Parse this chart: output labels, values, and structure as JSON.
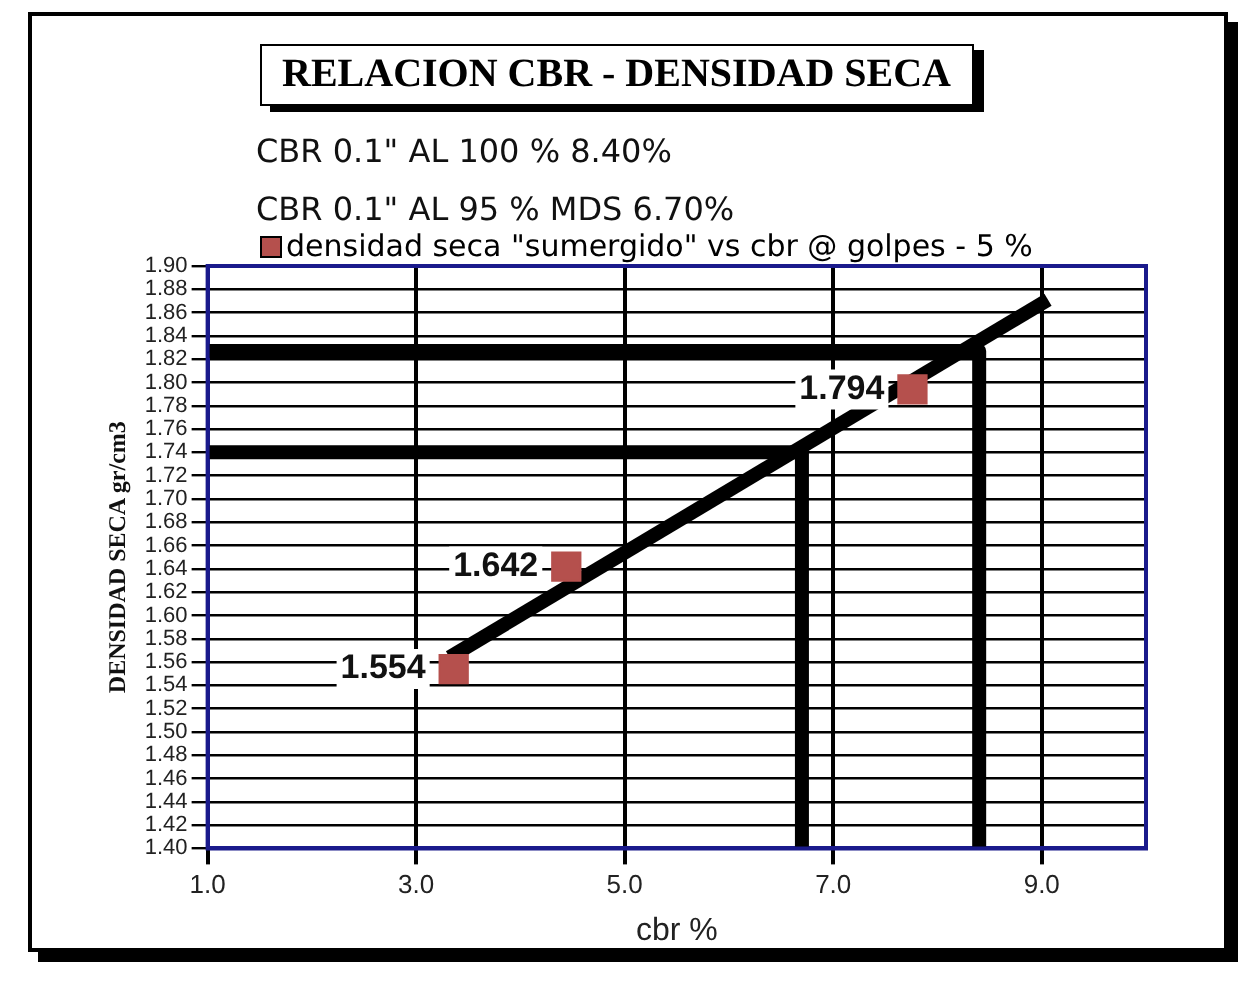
{
  "chart_data": {
    "type": "scatter",
    "title": "RELACION CBR - DENSIDAD SECA",
    "xlabel": "cbr %",
    "ylabel": "DENSIDAD SECA gr/cm3",
    "annotations": [
      "CBR  0.1\" AL 100 % 8.40%",
      "CBR  0.1\" AL 95 % MDS 6.70%"
    ],
    "xlim": [
      1,
      10
    ],
    "xticks": [
      {
        "value": 1,
        "label": "1.0"
      },
      {
        "value": 3,
        "label": "3.0"
      },
      {
        "value": 5,
        "label": "5.0"
      },
      {
        "value": 7,
        "label": "7.0"
      },
      {
        "value": 9,
        "label": "9.0"
      }
    ],
    "ylim": [
      1.4,
      1.9
    ],
    "yticks": [
      {
        "value": 1.4,
        "label": "1.40"
      },
      {
        "value": 1.42,
        "label": "1.42"
      },
      {
        "value": 1.44,
        "label": "1.44"
      },
      {
        "value": 1.46,
        "label": "1.46"
      },
      {
        "value": 1.48,
        "label": "1.48"
      },
      {
        "value": 1.5,
        "label": "1.50"
      },
      {
        "value": 1.52,
        "label": "1.52"
      },
      {
        "value": 1.54,
        "label": "1.54"
      },
      {
        "value": 1.56,
        "label": "1.56"
      },
      {
        "value": 1.58,
        "label": "1.58"
      },
      {
        "value": 1.6,
        "label": "1.60"
      },
      {
        "value": 1.62,
        "label": "1.62"
      },
      {
        "value": 1.64,
        "label": "1.64"
      },
      {
        "value": 1.66,
        "label": "1.66"
      },
      {
        "value": 1.68,
        "label": "1.68"
      },
      {
        "value": 1.7,
        "label": "1.70"
      },
      {
        "value": 1.72,
        "label": "1.72"
      },
      {
        "value": 1.74,
        "label": "1.74"
      },
      {
        "value": 1.76,
        "label": "1.76"
      },
      {
        "value": 1.78,
        "label": "1.78"
      },
      {
        "value": 1.8,
        "label": "1.80"
      },
      {
        "value": 1.82,
        "label": "1.82"
      },
      {
        "value": 1.84,
        "label": "1.84"
      },
      {
        "value": 1.86,
        "label": "1.86"
      },
      {
        "value": 1.88,
        "label": "1.88"
      },
      {
        "value": 1.9,
        "label": "1.90"
      }
    ],
    "grid": true,
    "legend": "top",
    "marker": "square",
    "series": [
      {
        "name": "densidad seca \"sumergido\" vs cbr @ golpes  - 5 %",
        "color": "#b5504d",
        "x": [
          3.36,
          4.44,
          7.76
        ],
        "values": [
          1.554,
          1.642,
          1.794
        ],
        "value_labels": [
          "1.554",
          "1.642",
          "1.794"
        ]
      },
      {
        "type": "line",
        "marker": "none",
        "color": "#000000",
        "x": [
          3.32,
          9.06
        ],
        "values": [
          1.564,
          1.871
        ]
      },
      {
        "type": "line",
        "marker": "none",
        "color": "#000000",
        "x": [
          1,
          6.7,
          6.7
        ],
        "values": [
          1.74,
          1.74,
          1.4
        ]
      },
      {
        "type": "line",
        "marker": "none",
        "color": "#000000",
        "x": [
          1,
          8.4,
          8.4
        ],
        "values": [
          1.827,
          1.827,
          1.4
        ]
      }
    ]
  }
}
